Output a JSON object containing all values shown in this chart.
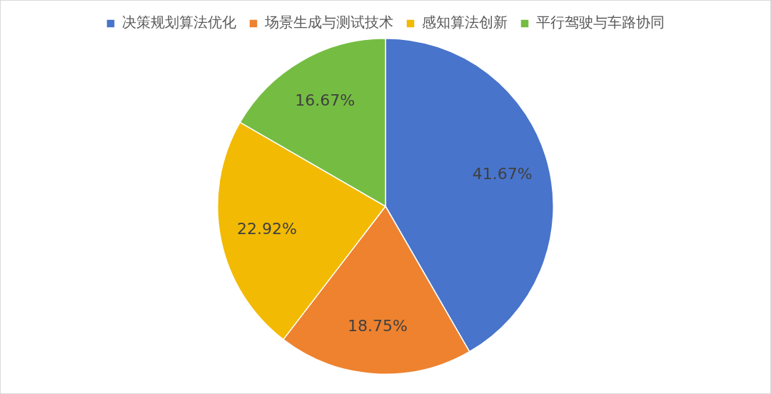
{
  "chart_data": {
    "type": "pie",
    "categories": [
      "决策规划算法优化",
      "场景生成与测试技术",
      "感知算法创新",
      "平行驾驶与车路协同"
    ],
    "values": [
      41.67,
      18.75,
      22.92,
      16.67
    ],
    "colors": [
      "#4874cb",
      "#ee822f",
      "#f2ba02",
      "#75bd42"
    ],
    "value_labels": [
      "41.67%",
      "18.75%",
      "22.92%",
      "16.67%"
    ],
    "legend": "top"
  }
}
